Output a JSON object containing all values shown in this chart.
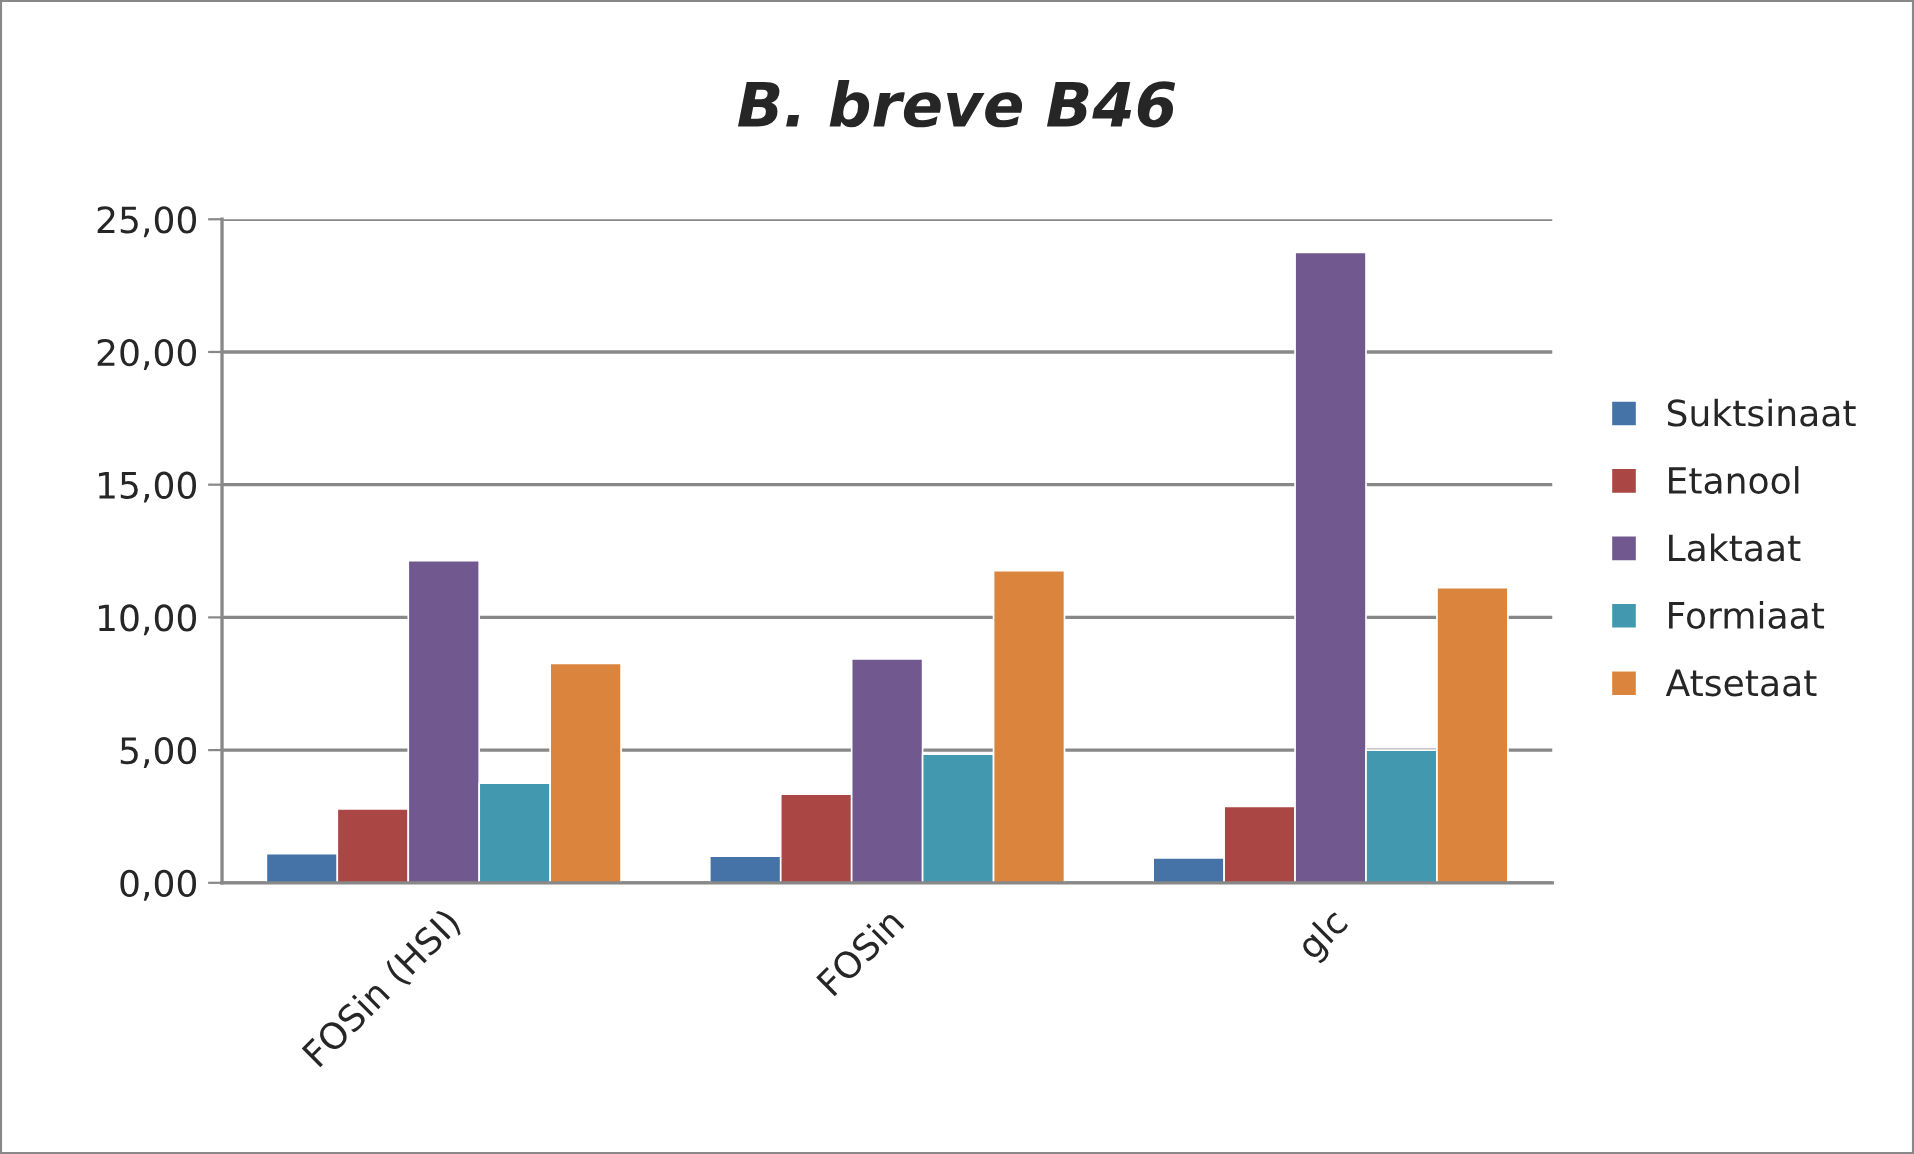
{
  "chart_data": {
    "type": "bar",
    "title": "B. breve B46",
    "categories": [
      "FOSin (HSI)",
      "FOSin",
      "glc"
    ],
    "series": [
      {
        "name": "Suktsinaat",
        "color": "#4572a7",
        "values": [
          1.1,
          1.0,
          0.94
        ]
      },
      {
        "name": "Etanool",
        "color": "#aa4643",
        "values": [
          2.78,
          3.34,
          2.88
        ]
      },
      {
        "name": "Laktaat",
        "color": "#71588f",
        "values": [
          12.14,
          8.44,
          23.75
        ]
      },
      {
        "name": "Formiaat",
        "color": "#4198af",
        "values": [
          3.75,
          4.85,
          5.0
        ]
      },
      {
        "name": "Atsetaat",
        "color": "#db843d",
        "values": [
          8.27,
          11.76,
          11.12
        ]
      }
    ],
    "ylim": [
      0,
      25
    ],
    "yticks": [
      {
        "value": 0,
        "label": "0,00"
      },
      {
        "value": 5,
        "label": "5,00"
      },
      {
        "value": 10,
        "label": "10,00"
      },
      {
        "value": 15,
        "label": "15,00"
      },
      {
        "value": 20,
        "label": "20,00"
      },
      {
        "value": 25,
        "label": "25,00"
      }
    ],
    "grid": "y",
    "legend": "right"
  }
}
